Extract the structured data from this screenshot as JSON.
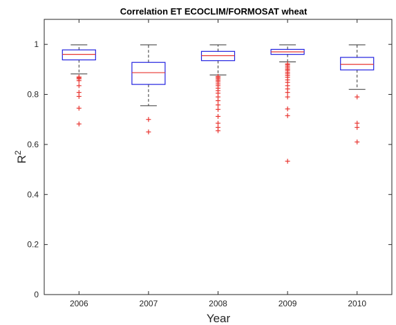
{
  "chart_data": {
    "type": "boxplot",
    "title": "Correlation ET ECOCLIM/FORMOSAT wheat",
    "xlabel": "Year",
    "ylabel": "R2",
    "ylabel_base": "R",
    "ylabel_superscript": "2",
    "ylim": [
      0,
      1.1
    ],
    "yticks": [
      0,
      0.2,
      0.4,
      0.6,
      0.8,
      1
    ],
    "ytick_labels": [
      "0",
      "0.2",
      "0.4",
      "0.6",
      "0.8",
      "1"
    ],
    "categories": [
      "2006",
      "2007",
      "2008",
      "2009",
      "2010"
    ],
    "grid": false,
    "colors": {
      "box": "#2020e0",
      "median": "#e8342f",
      "whisker": "#333333",
      "outlier": "#e8342f",
      "axis": "#262626"
    },
    "boxes": [
      {
        "category": "2006",
        "whisker_low": 0.882,
        "q1": 0.938,
        "median": 0.96,
        "q3": 0.978,
        "whisker_high": 0.998,
        "outliers": [
          0.682,
          0.745,
          0.792,
          0.808,
          0.835,
          0.855,
          0.862,
          0.866,
          0.87
        ]
      },
      {
        "category": "2007",
        "whisker_low": 0.755,
        "q1": 0.84,
        "median": 0.887,
        "q3": 0.928,
        "whisker_high": 0.998,
        "outliers": [
          0.65,
          0.7
        ]
      },
      {
        "category": "2008",
        "whisker_low": 0.878,
        "q1": 0.935,
        "median": 0.955,
        "q3": 0.972,
        "whisker_high": 0.998,
        "outliers": [
          0.655,
          0.668,
          0.685,
          0.712,
          0.74,
          0.758,
          0.775,
          0.79,
          0.805,
          0.815,
          0.825,
          0.835,
          0.842,
          0.85,
          0.856,
          0.862,
          0.867,
          0.872
        ]
      },
      {
        "category": "2009",
        "whisker_low": 0.93,
        "q1": 0.96,
        "median": 0.97,
        "q3": 0.98,
        "whisker_high": 0.998,
        "outliers": [
          0.533,
          0.715,
          0.742,
          0.79,
          0.808,
          0.822,
          0.835,
          0.848,
          0.858,
          0.868,
          0.875,
          0.882,
          0.888,
          0.895,
          0.9,
          0.906,
          0.912,
          0.918,
          0.922
        ]
      },
      {
        "category": "2010",
        "whisker_low": 0.82,
        "q1": 0.898,
        "median": 0.92,
        "q3": 0.948,
        "whisker_high": 0.998,
        "outliers": [
          0.61,
          0.668,
          0.685,
          0.79
        ]
      }
    ]
  }
}
